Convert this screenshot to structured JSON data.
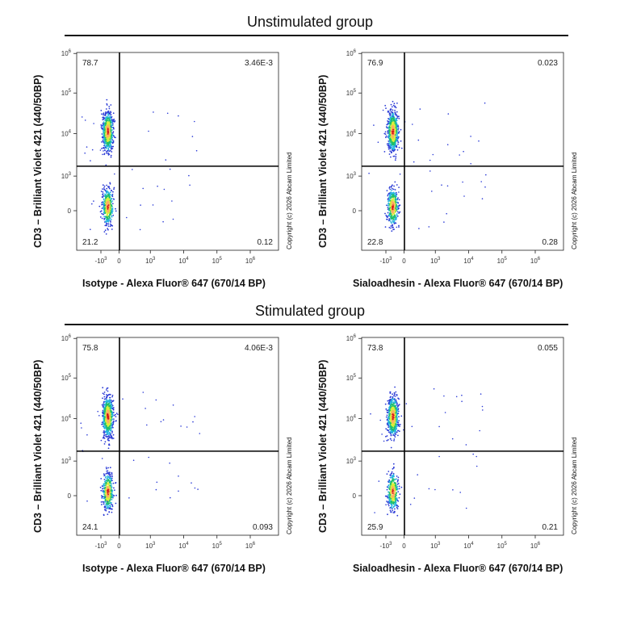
{
  "titles": {
    "unstimulated": "Unstimulated group",
    "stimulated": "Stimulated group"
  },
  "copyright": "Copyright (c) 2026 Abcam Limited",
  "ylabel": "CD3 – Brilliant Violet 421 (440/50BP)",
  "chart_data": [
    {
      "type": "scatter",
      "group": "Unstimulated group",
      "xlabel": "Isotype - Alexa Fluor® 647 (670/14 BP)",
      "ylabel": "CD3 – Brilliant Violet 421 (440/50BP)",
      "x_ticks": [
        "-10^3",
        "0",
        "10^3",
        "10^4",
        "10^5",
        "10^6"
      ],
      "y_ticks": [
        "0",
        "10^3",
        "10^4",
        "10^5",
        "10^6"
      ],
      "quadrants": {
        "upper_left": "78.7",
        "upper_right": "3.46E-3",
        "lower_left": "21.2",
        "lower_right": "0.12"
      }
    },
    {
      "type": "scatter",
      "group": "Unstimulated group",
      "xlabel": "Sialoadhesin - Alexa Fluor® 647 (670/14 BP)",
      "ylabel": "CD3 – Brilliant Violet 421 (440/50BP)",
      "x_ticks": [
        "-10^3",
        "0",
        "10^3",
        "10^4",
        "10^5",
        "10^6"
      ],
      "y_ticks": [
        "0",
        "10^3",
        "10^4",
        "10^5",
        "10^6"
      ],
      "quadrants": {
        "upper_left": "76.9",
        "upper_right": "0.023",
        "lower_left": "22.8",
        "lower_right": "0.28"
      }
    },
    {
      "type": "scatter",
      "group": "Stimulated group",
      "xlabel": "Isotype - Alexa Fluor® 647 (670/14 BP)",
      "ylabel": "CD3 – Brilliant Violet 421 (440/50BP)",
      "x_ticks": [
        "-10^3",
        "0",
        "10^3",
        "10^4",
        "10^5",
        "10^6"
      ],
      "y_ticks": [
        "0",
        "10^3",
        "10^4",
        "10^5",
        "10^6"
      ],
      "quadrants": {
        "upper_left": "75.8",
        "upper_right": "4.06E-3",
        "lower_left": "24.1",
        "lower_right": "0.093"
      }
    },
    {
      "type": "scatter",
      "group": "Stimulated group",
      "xlabel": "Sialoadhesin - Alexa Fluor® 647 (670/14 BP)",
      "ylabel": "CD3 – Brilliant Violet 421 (440/50BP)",
      "x_ticks": [
        "-10^3",
        "0",
        "10^3",
        "10^4",
        "10^5",
        "10^6"
      ],
      "y_ticks": [
        "0",
        "10^3",
        "10^4",
        "10^5",
        "10^6"
      ],
      "quadrants": {
        "upper_left": "73.8",
        "upper_right": "0.055",
        "lower_left": "25.9",
        "lower_right": "0.21"
      }
    }
  ]
}
